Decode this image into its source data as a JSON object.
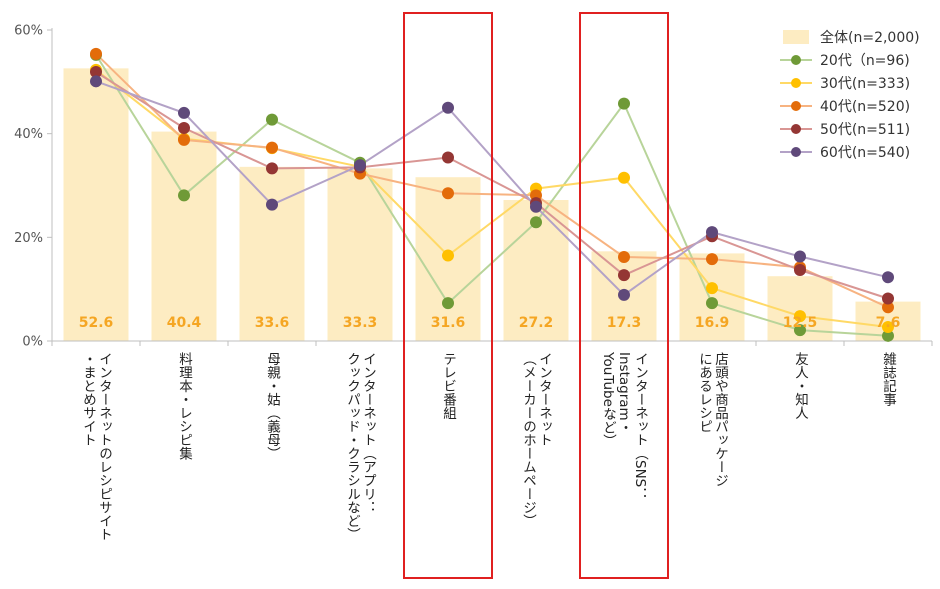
{
  "chart_data": {
    "type": "bar",
    "categories": [
      [
        "インターネットのレシピサイト",
        "・まとめサイト"
      ],
      [
        "料理本・レシピ集"
      ],
      [
        "母親・姑（義母）"
      ],
      [
        "インターネット（アプリ：",
        "クックパッド・クラシルなど）"
      ],
      [
        "テレビ番組"
      ],
      [
        "インターネット",
        "（メーカーのホームページ）"
      ],
      [
        "インターネット（SNS：",
        "Instagram・",
        "YouTubeなど）"
      ],
      [
        "店頭や商品パッケージ",
        "にあるレシピ"
      ],
      [
        "友人・知人"
      ],
      [
        "雑誌記事"
      ]
    ],
    "bar_series": {
      "name": "全体(n=2,000)",
      "values": [
        52.6,
        40.4,
        33.6,
        33.3,
        31.6,
        27.2,
        17.3,
        16.9,
        12.5,
        7.6
      ],
      "labels": [
        "52.6",
        "40.4",
        "33.6",
        "33.3",
        "31.6",
        "27.2",
        "17.3",
        "16.9",
        "12.5",
        "7.6"
      ],
      "color": "#fdecc2"
    },
    "series": [
      {
        "name": "20代（n=96)",
        "values": [
          55.2,
          28.1,
          42.7,
          34.4,
          7.3,
          22.9,
          45.8,
          7.3,
          2.1,
          1.0
        ],
        "color": "#6f9a37",
        "line": "#b8d49a"
      },
      {
        "name": "30代(n=333)",
        "values": [
          52.3,
          39.0,
          37.2,
          33.6,
          16.5,
          29.4,
          31.5,
          10.2,
          4.8,
          2.7
        ],
        "color": "#ffc000",
        "line": "#ffd966"
      },
      {
        "name": "40代(n=520)",
        "values": [
          55.4,
          38.8,
          37.3,
          32.3,
          28.5,
          28.1,
          16.2,
          15.8,
          14.2,
          6.5
        ],
        "color": "#e36c0a",
        "line": "#f7b381"
      },
      {
        "name": "50代(n=511)",
        "values": [
          51.9,
          41.1,
          33.3,
          33.5,
          35.4,
          26.6,
          12.7,
          20.2,
          13.7,
          8.2
        ],
        "color": "#943634",
        "line": "#d99694"
      },
      {
        "name": "60代(n=540)",
        "values": [
          50.1,
          44.0,
          26.3,
          33.9,
          45.0,
          25.9,
          8.9,
          21.0,
          16.3,
          12.3
        ],
        "color": "#5f497a",
        "line": "#b3a2c7"
      }
    ],
    "yticks": [
      "0%",
      "20%",
      "40%",
      "60%"
    ],
    "ylim": [
      0,
      60
    ],
    "highlighted_categories": [
      4,
      6
    ],
    "highlight_color": "#e02020",
    "legend_position": "top-right",
    "grid": false
  }
}
